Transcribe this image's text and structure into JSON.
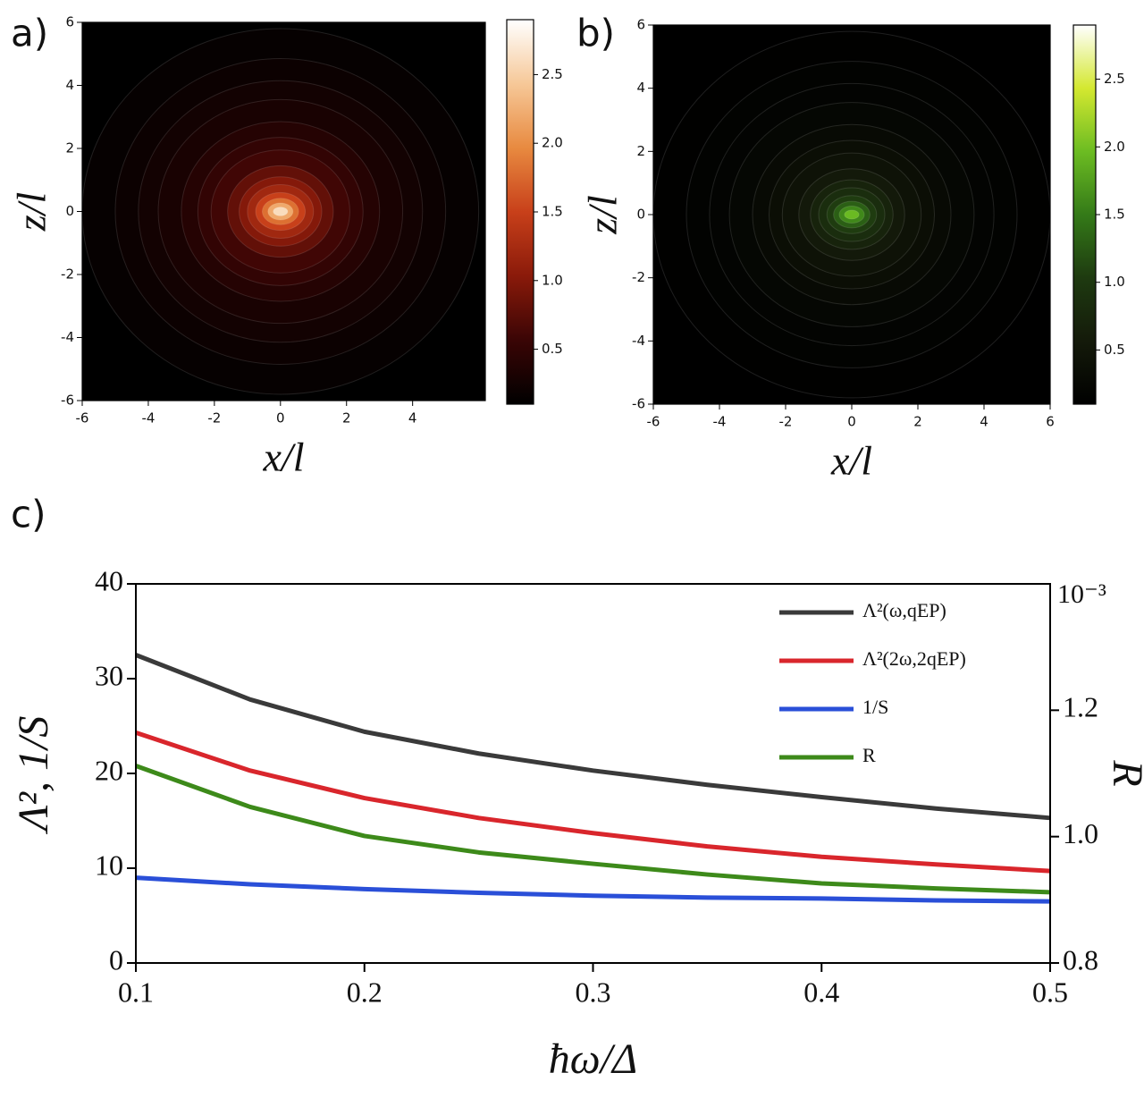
{
  "chart_data": [
    {
      "type": "contour",
      "panel_label": "a)",
      "x_label": "x/l",
      "y_label": "z/l",
      "xlim": [
        -6,
        6.2
      ],
      "ylim": [
        -6,
        6
      ],
      "xticks": [
        -6,
        -4,
        -2,
        0,
        2,
        4
      ],
      "yticks": [
        -6,
        -4,
        -2,
        0,
        2,
        4,
        6
      ],
      "clim": [
        0.1,
        2.9
      ],
      "cticks": [
        0.5,
        {
          "value": 1,
          "label": "1.0"
        },
        1.5,
        {
          "value": 2,
          "label": "2.0"
        },
        2.5
      ],
      "colormap": [
        "#000000",
        "#3a0505",
        "#8a1a0a",
        "#c8401a",
        "#e88a40",
        "#f6c898",
        "#ffffff"
      ],
      "contours": {
        "levels": [
          0.15,
          0.2,
          0.25,
          0.3,
          0.4,
          0.5,
          0.6,
          0.8,
          1.0,
          1.2,
          1.5,
          1.8,
          2.2,
          2.6
        ],
        "x_radii": [
          6.0,
          5.0,
          4.3,
          3.7,
          3.0,
          2.5,
          2.1,
          1.6,
          1.25,
          1.0,
          0.75,
          0.55,
          0.38,
          0.22
        ],
        "z_radii": [
          5.8,
          4.85,
          4.15,
          3.55,
          2.85,
          2.35,
          1.95,
          1.45,
          1.1,
          0.85,
          0.6,
          0.42,
          0.27,
          0.14
        ]
      }
    },
    {
      "type": "contour",
      "panel_label": "b)",
      "x_label": "x/l",
      "y_label": "z/l",
      "xlim": [
        -6,
        6
      ],
      "ylim": [
        -6,
        6
      ],
      "xticks": [
        -6,
        -4,
        -2,
        0,
        2,
        4,
        6
      ],
      "yticks": [
        -6,
        -4,
        -2,
        0,
        2,
        4,
        6
      ],
      "clim": [
        0.1,
        2.9
      ],
      "cticks": [
        0.5,
        {
          "value": 1,
          "label": "1.0"
        },
        1.5,
        {
          "value": 2,
          "label": "2.0"
        },
        2.5
      ],
      "colormap": [
        "#000000",
        "#141a0a",
        "#1e3a10",
        "#347a18",
        "#6cbc22",
        "#d4e830",
        "#ffffff"
      ],
      "contours": {
        "levels": [
          0.12,
          0.15,
          0.18,
          0.22,
          0.28,
          0.35,
          0.42,
          0.55,
          0.7,
          0.85,
          1.05,
          1.3,
          1.6,
          1.95
        ],
        "x_radii": [
          6.0,
          5.0,
          4.3,
          3.7,
          3.0,
          2.5,
          2.1,
          1.6,
          1.25,
          1.0,
          0.75,
          0.55,
          0.38,
          0.22
        ],
        "z_radii": [
          5.8,
          4.85,
          4.15,
          3.55,
          2.85,
          2.35,
          1.95,
          1.45,
          1.1,
          0.85,
          0.6,
          0.42,
          0.27,
          0.14
        ]
      }
    },
    {
      "type": "line",
      "panel_label": "c)",
      "x_label": "ħω/Δ",
      "y_label": "Λ², 1/S",
      "y2_label": "R",
      "y2_offset_label": "10⁻³",
      "x": [
        0.1,
        0.15,
        0.2,
        0.25,
        0.3,
        0.35,
        0.4,
        0.45,
        0.5
      ],
      "xlim": [
        0.1,
        0.5
      ],
      "xticks": [
        0.1,
        0.2,
        0.3,
        0.4,
        0.5
      ],
      "ylim": [
        0,
        40
      ],
      "yticks": [
        0,
        10,
        20,
        30,
        40
      ],
      "y2lim": [
        0.8,
        1.4
      ],
      "y2ticks": [
        0.8,
        {
          "value": 1,
          "label": "1.0"
        },
        1.2
      ],
      "series": [
        {
          "name": "Λ²(ω,qEP)",
          "color": "#3a3a3a",
          "values": [
            32.5,
            27.8,
            24.4,
            22.1,
            20.3,
            18.8,
            17.5,
            16.3,
            15.3
          ]
        },
        {
          "name": "Λ²(2ω,2qEP)",
          "color": "#d9262c",
          "values": [
            24.3,
            20.3,
            17.4,
            15.3,
            13.7,
            12.3,
            11.2,
            10.4,
            9.7
          ]
        },
        {
          "name": "1/S",
          "color": "#2a4fd8",
          "values": [
            9.0,
            8.3,
            7.8,
            7.4,
            7.1,
            6.9,
            6.8,
            6.6,
            6.5
          ]
        },
        {
          "name": "R",
          "color": "#3d8a1a",
          "axis": "y2",
          "values": [
            1.112,
            1.047,
            1.001,
            0.975,
            0.957,
            0.94,
            0.926,
            0.918,
            0.912
          ]
        }
      ]
    }
  ]
}
